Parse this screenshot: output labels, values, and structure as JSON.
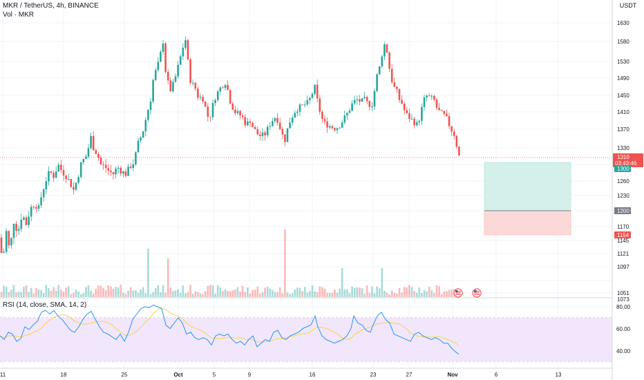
{
  "header": {
    "symbol_line": "MKR / TetherUS, 4h, BINANCE",
    "volume_label": "Vol · MKR"
  },
  "price_scale": {
    "currency": "USDT",
    "ticks": [
      "1630",
      "1580",
      "1530",
      "1490",
      "1450",
      "1410",
      "1370",
      "1330",
      "1260",
      "1230",
      "1170",
      "1145",
      "1121",
      "1097",
      "1073",
      "1051"
    ],
    "current_price": "1310",
    "countdown": "03:43:46",
    "target_label": "1300",
    "entry_label": "1200",
    "stop_label": "1154"
  },
  "rsi": {
    "label": "RSI (14, close, SMA, 14, 2)",
    "ticks": [
      "80.00",
      "60.00",
      "40.00"
    ]
  },
  "time_axis": {
    "labels": [
      "11",
      "18",
      "25",
      "Oct",
      "5",
      "9",
      "16",
      "23",
      "27",
      "Nov",
      "6",
      "13"
    ]
  },
  "colors": {
    "up": "#26a69a",
    "down": "#ef5350",
    "rsi_line": "#2196f3",
    "rsi_ma": "#f5d742",
    "rsi_band": "#f2e6fc",
    "profit_zone": "#d3f0ea",
    "loss_zone": "#fcd9d9"
  },
  "icons": [
    "us-flag-icon",
    "us-flag-icon"
  ],
  "chart_data": {
    "type": "candlestick",
    "path_points": [
      [
        0,
        1150
      ],
      [
        4,
        1095
      ],
      [
        8,
        1170
      ],
      [
        14,
        1125
      ],
      [
        20,
        1180
      ],
      [
        26,
        1160
      ],
      [
        32,
        1195
      ],
      [
        38,
        1175
      ],
      [
        44,
        1205
      ],
      [
        50,
        1215
      ],
      [
        56,
        1205
      ],
      [
        60,
        1230
      ],
      [
        66,
        1260
      ],
      [
        72,
        1280
      ],
      [
        78,
        1270
      ],
      [
        84,
        1295
      ],
      [
        90,
        1280
      ],
      [
        96,
        1270
      ],
      [
        102,
        1255
      ],
      [
        106,
        1240
      ],
      [
        112,
        1265
      ],
      [
        118,
        1300
      ],
      [
        124,
        1310
      ],
      [
        128,
        1330
      ],
      [
        132,
        1355
      ],
      [
        136,
        1325
      ],
      [
        140,
        1320
      ],
      [
        146,
        1295
      ],
      [
        152,
        1290
      ],
      [
        158,
        1280
      ],
      [
        164,
        1275
      ],
      [
        170,
        1290
      ],
      [
        176,
        1280
      ],
      [
        182,
        1275
      ],
      [
        188,
        1290
      ],
      [
        194,
        1300
      ],
      [
        200,
        1340
      ],
      [
        206,
        1360
      ],
      [
        212,
        1400
      ],
      [
        218,
        1440
      ],
      [
        222,
        1490
      ],
      [
        226,
        1510
      ],
      [
        230,
        1530
      ],
      [
        236,
        1580
      ],
      [
        240,
        1500
      ],
      [
        246,
        1460
      ],
      [
        252,
        1480
      ],
      [
        258,
        1520
      ],
      [
        264,
        1560
      ],
      [
        268,
        1590
      ],
      [
        272,
        1530
      ],
      [
        276,
        1480
      ],
      [
        282,
        1470
      ],
      [
        288,
        1440
      ],
      [
        292,
        1450
      ],
      [
        296,
        1430
      ],
      [
        300,
        1400
      ],
      [
        304,
        1400
      ],
      [
        310,
        1440
      ],
      [
        316,
        1460
      ],
      [
        320,
        1470
      ],
      [
        326,
        1480
      ],
      [
        330,
        1460
      ],
      [
        334,
        1430
      ],
      [
        340,
        1410
      ],
      [
        346,
        1405
      ],
      [
        352,
        1395
      ],
      [
        356,
        1380
      ],
      [
        362,
        1390
      ],
      [
        366,
        1375
      ],
      [
        372,
        1360
      ],
      [
        378,
        1355
      ],
      [
        384,
        1360
      ],
      [
        390,
        1380
      ],
      [
        396,
        1395
      ],
      [
        400,
        1400
      ],
      [
        404,
        1380
      ],
      [
        408,
        1360
      ],
      [
        412,
        1345
      ],
      [
        416,
        1370
      ],
      [
        420,
        1390
      ],
      [
        426,
        1410
      ],
      [
        432,
        1420
      ],
      [
        438,
        1425
      ],
      [
        444,
        1430
      ],
      [
        448,
        1440
      ],
      [
        452,
        1455
      ],
      [
        456,
        1470
      ],
      [
        460,
        1430
      ],
      [
        464,
        1405
      ],
      [
        468,
        1385
      ],
      [
        474,
        1380
      ],
      [
        480,
        1375
      ],
      [
        486,
        1372
      ],
      [
        492,
        1380
      ],
      [
        498,
        1395
      ],
      [
        504,
        1410
      ],
      [
        510,
        1430
      ],
      [
        516,
        1440
      ],
      [
        522,
        1435
      ],
      [
        528,
        1440
      ],
      [
        532,
        1430
      ],
      [
        538,
        1425
      ],
      [
        542,
        1460
      ],
      [
        546,
        1500
      ],
      [
        550,
        1520
      ],
      [
        554,
        1560
      ],
      [
        558,
        1580
      ],
      [
        562,
        1530
      ],
      [
        566,
        1490
      ],
      [
        570,
        1470
      ],
      [
        574,
        1460
      ],
      [
        578,
        1440
      ],
      [
        582,
        1430
      ],
      [
        586,
        1410
      ],
      [
        590,
        1400
      ],
      [
        594,
        1395
      ],
      [
        600,
        1385
      ],
      [
        604,
        1380
      ],
      [
        608,
        1400
      ],
      [
        612,
        1430
      ],
      [
        616,
        1450
      ],
      [
        622,
        1445
      ],
      [
        628,
        1440
      ],
      [
        632,
        1420
      ],
      [
        636,
        1410
      ],
      [
        640,
        1405
      ],
      [
        644,
        1400
      ],
      [
        648,
        1390
      ],
      [
        652,
        1370
      ],
      [
        656,
        1365
      ],
      [
        660,
        1345
      ],
      [
        663,
        1312
      ]
    ],
    "volume_spikes": [
      {
        "candle_index": 59,
        "value": 5
      },
      {
        "candle_index": 67,
        "value": 4
      },
      {
        "candle_index": 114,
        "value": 7
      },
      {
        "candle_index": 137,
        "value": 3
      },
      {
        "candle_index": 153,
        "value": 3
      }
    ],
    "rsi_points": [
      [
        0,
        48
      ],
      [
        6,
        44
      ],
      [
        12,
        52
      ],
      [
        18,
        50
      ],
      [
        24,
        42
      ],
      [
        30,
        45
      ],
      [
        36,
        58
      ],
      [
        42,
        55
      ],
      [
        48,
        60
      ],
      [
        54,
        64
      ],
      [
        60,
        74
      ],
      [
        66,
        76
      ],
      [
        72,
        72
      ],
      [
        78,
        76
      ],
      [
        84,
        70
      ],
      [
        90,
        66
      ],
      [
        96,
        60
      ],
      [
        102,
        54
      ],
      [
        108,
        52
      ],
      [
        114,
        58
      ],
      [
        120,
        66
      ],
      [
        126,
        72
      ],
      [
        132,
        75
      ],
      [
        138,
        66
      ],
      [
        144,
        58
      ],
      [
        150,
        52
      ],
      [
        156,
        50
      ],
      [
        162,
        47
      ],
      [
        168,
        44
      ],
      [
        174,
        50
      ],
      [
        180,
        42
      ],
      [
        186,
        52
      ],
      [
        192,
        66
      ],
      [
        198,
        72
      ],
      [
        204,
        78
      ],
      [
        210,
        80
      ],
      [
        216,
        79
      ],
      [
        222,
        82
      ],
      [
        228,
        80
      ],
      [
        234,
        78
      ],
      [
        240,
        60
      ],
      [
        246,
        56
      ],
      [
        252,
        62
      ],
      [
        258,
        68
      ],
      [
        264,
        62
      ],
      [
        270,
        50
      ],
      [
        276,
        52
      ],
      [
        282,
        46
      ],
      [
        288,
        44
      ],
      [
        294,
        46
      ],
      [
        300,
        44
      ],
      [
        306,
        38
      ],
      [
        312,
        48
      ],
      [
        318,
        50
      ],
      [
        324,
        48
      ],
      [
        330,
        50
      ],
      [
        336,
        44
      ],
      [
        342,
        40
      ],
      [
        348,
        42
      ],
      [
        354,
        38
      ],
      [
        360,
        44
      ],
      [
        366,
        48
      ],
      [
        372,
        36
      ],
      [
        378,
        40
      ],
      [
        384,
        44
      ],
      [
        390,
        42
      ],
      [
        396,
        52
      ],
      [
        402,
        54
      ],
      [
        408,
        46
      ],
      [
        414,
        44
      ],
      [
        420,
        48
      ],
      [
        426,
        50
      ],
      [
        432,
        52
      ],
      [
        438,
        56
      ],
      [
        444,
        58
      ],
      [
        450,
        60
      ],
      [
        456,
        70
      ],
      [
        460,
        58
      ],
      [
        466,
        48
      ],
      [
        472,
        44
      ],
      [
        478,
        42
      ],
      [
        484,
        40
      ],
      [
        490,
        42
      ],
      [
        496,
        44
      ],
      [
        502,
        48
      ],
      [
        508,
        56
      ],
      [
        512,
        70
      ],
      [
        518,
        62
      ],
      [
        524,
        60
      ],
      [
        530,
        54
      ],
      [
        536,
        52
      ],
      [
        540,
        60
      ],
      [
        546,
        70
      ],
      [
        552,
        74
      ],
      [
        558,
        66
      ],
      [
        564,
        62
      ],
      [
        570,
        50
      ],
      [
        576,
        48
      ],
      [
        582,
        46
      ],
      [
        588,
        44
      ],
      [
        594,
        42
      ],
      [
        600,
        50
      ],
      [
        606,
        52
      ],
      [
        612,
        48
      ],
      [
        618,
        46
      ],
      [
        624,
        44
      ],
      [
        630,
        46
      ],
      [
        636,
        44
      ],
      [
        642,
        40
      ],
      [
        648,
        40
      ],
      [
        654,
        34
      ],
      [
        660,
        30
      ],
      [
        664,
        28
      ]
    ],
    "position_tool": {
      "target": 1300,
      "entry": 1200,
      "stop": 1154
    }
  }
}
